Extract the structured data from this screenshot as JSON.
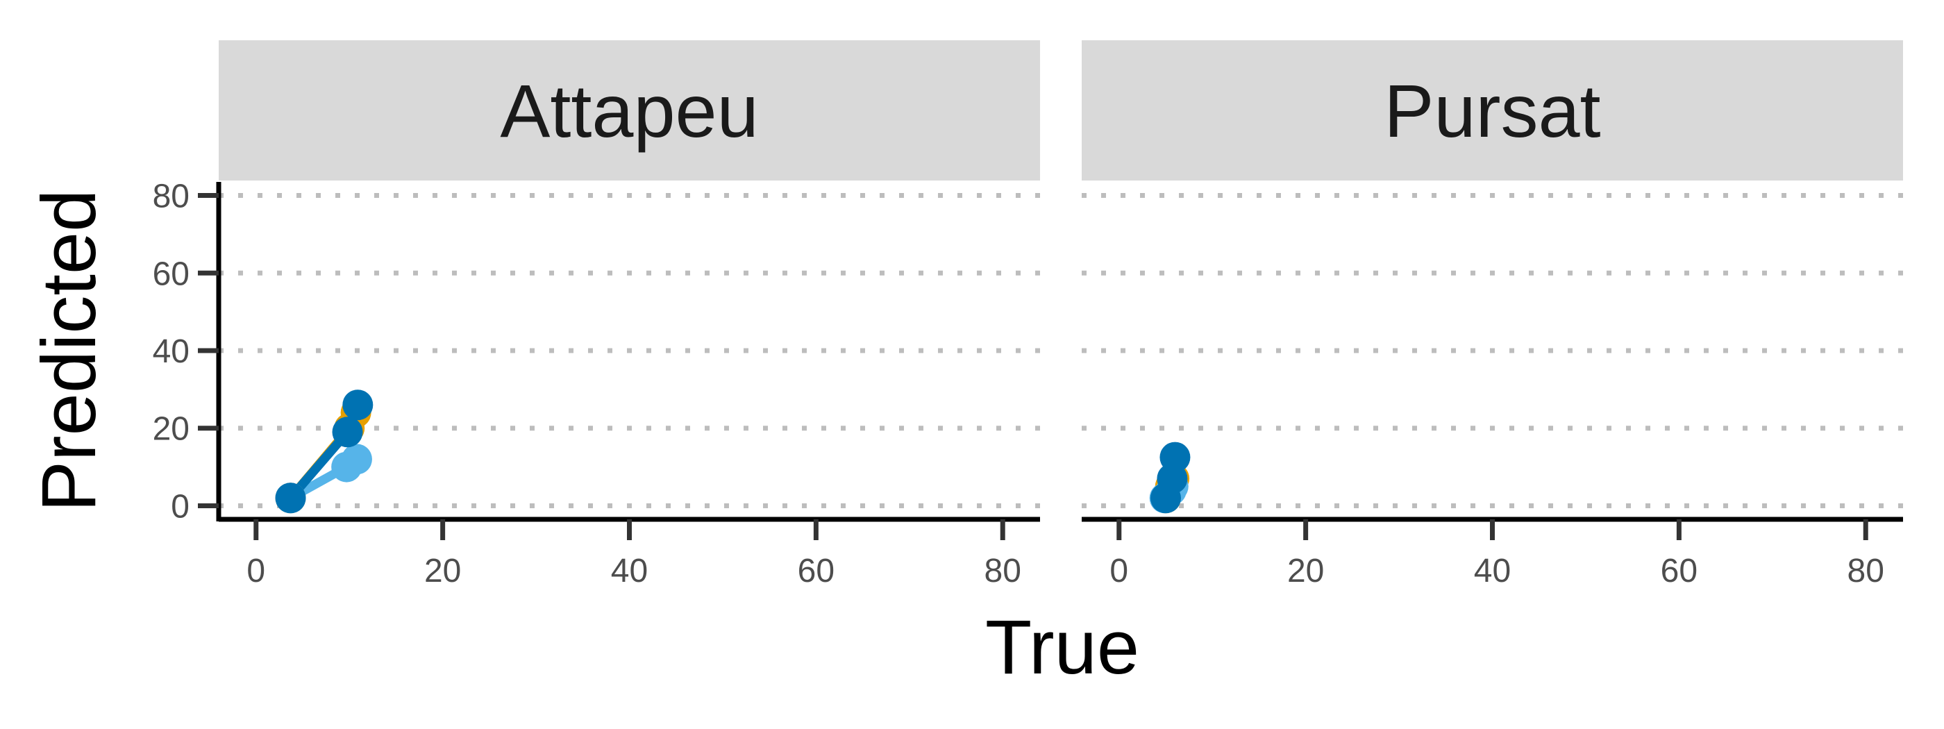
{
  "chart_data": {
    "type": "scatter",
    "title": "",
    "xlabel": "True",
    "ylabel": "Predicted",
    "xlim": [
      -4,
      84
    ],
    "ylim": [
      -3.5,
      83.5
    ],
    "x_ticks": [
      "0",
      "20",
      "40",
      "60",
      "80"
    ],
    "y_ticks": [
      "0",
      "20",
      "40",
      "60",
      "80"
    ],
    "grid": "horizontal dotted",
    "colors": [
      "#E69F00",
      "#56B4E9",
      "#0072B2"
    ],
    "panels": [
      {
        "name": "Attapeu",
        "series": [
          {
            "x": [
              3.7,
              10.0,
              10.7
            ],
            "y": [
              2.0,
              20.0,
              24.0
            ]
          },
          {
            "x": [
              3.7,
              9.7,
              10.8
            ],
            "y": [
              2.0,
              10.0,
              12.0
            ]
          },
          {
            "x": [
              3.7,
              9.8,
              10.9
            ],
            "y": [
              2.0,
              19.0,
              26.0
            ]
          }
        ]
      },
      {
        "name": "Pursat",
        "series": [
          {
            "x": [
              5.0,
              5.5,
              5.9
            ],
            "y": [
              2.0,
              5.0,
              7.0
            ]
          },
          {
            "x": [
              4.9,
              5.6,
              5.8
            ],
            "y": [
              2.0,
              4.0,
              5.0
            ]
          },
          {
            "x": [
              5.0,
              5.7,
              6.0
            ],
            "y": [
              2.0,
              7.0,
              12.5
            ]
          }
        ]
      }
    ]
  }
}
